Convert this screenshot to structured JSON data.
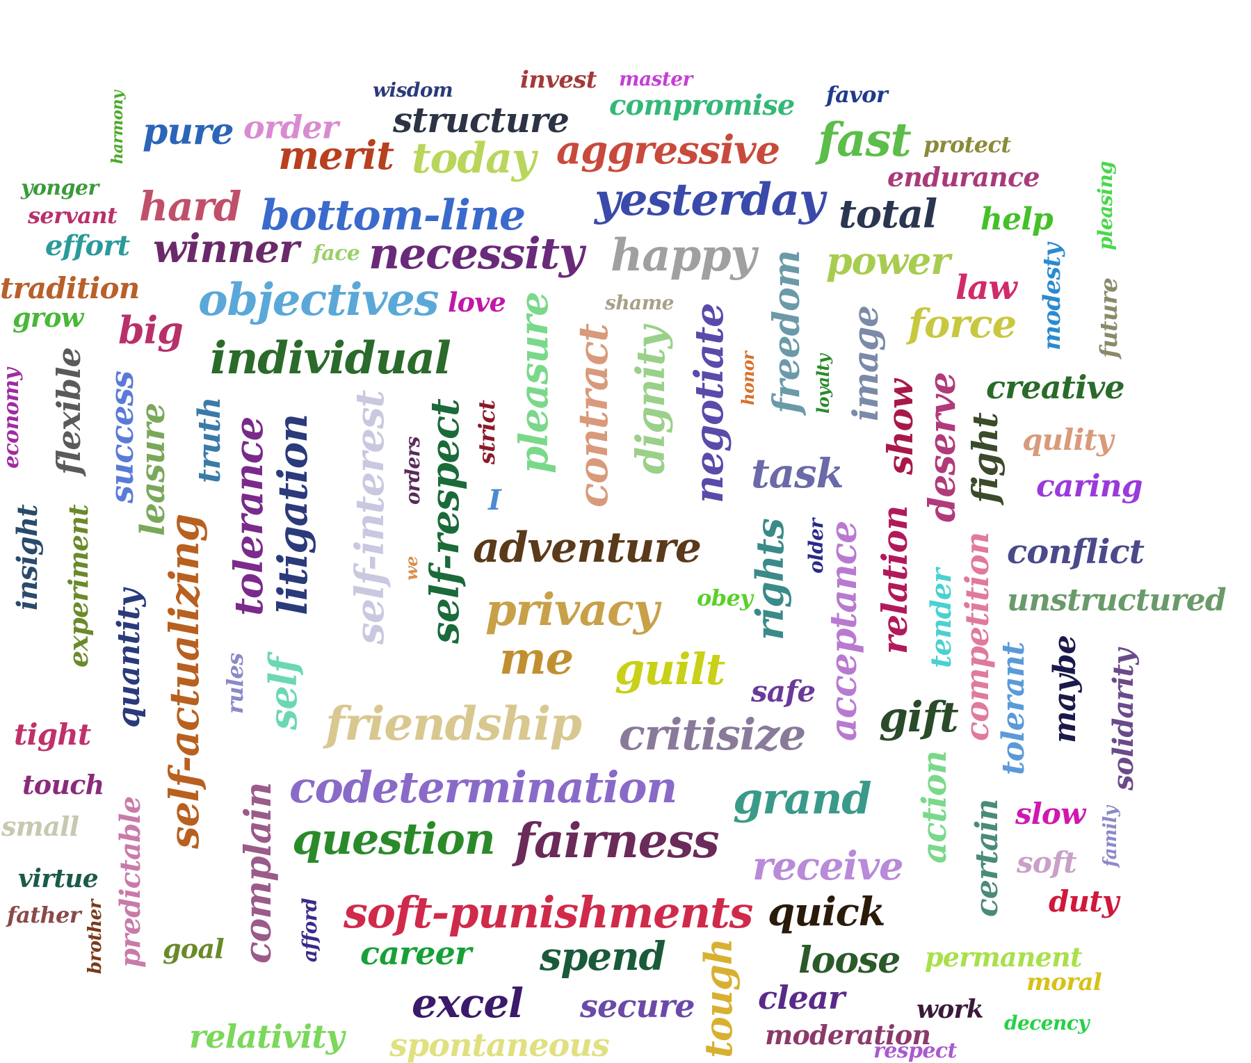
{
  "words": [
    {
      "text": "wisdom",
      "color": "#2b3a7a"
    },
    {
      "text": "invest",
      "color": "#a33a3a"
    },
    {
      "text": "master",
      "color": "#c43fd6"
    },
    {
      "text": "compromise",
      "color": "#34b878"
    },
    {
      "text": "favor",
      "color": "#1f3a8a"
    },
    {
      "text": "harmony",
      "color": "#4caa2a"
    },
    {
      "text": "structure",
      "color": "#2c3344"
    },
    {
      "text": "order",
      "color": "#d98bd0"
    },
    {
      "text": "pure",
      "color": "#2a65b8"
    },
    {
      "text": "merit",
      "color": "#b8401f"
    },
    {
      "text": "today",
      "color": "#b9d65a"
    },
    {
      "text": "aggressive",
      "color": "#c84a3c"
    },
    {
      "text": "fast",
      "color": "#5cbd4a"
    },
    {
      "text": "protect",
      "color": "#8a8a3a"
    },
    {
      "text": "yonger",
      "color": "#3a9a3a"
    },
    {
      "text": "endurance",
      "color": "#a83a7a"
    },
    {
      "text": "servant",
      "color": "#b8306a"
    },
    {
      "text": "hard",
      "color": "#c0506a"
    },
    {
      "text": "bottom-line",
      "color": "#3a6acc"
    },
    {
      "text": "yesterday",
      "color": "#3a4aaa"
    },
    {
      "text": "total",
      "color": "#2a3550"
    },
    {
      "text": "pleasing",
      "color": "#48d848"
    },
    {
      "text": "effort",
      "color": "#2a9a9a"
    },
    {
      "text": "help",
      "color": "#44c028"
    },
    {
      "text": "winner",
      "color": "#6a2a6a"
    },
    {
      "text": "face",
      "color": "#9ad06a"
    },
    {
      "text": "necessity",
      "color": "#6a2a7a"
    },
    {
      "text": "happy",
      "color": "#a0a0a0"
    },
    {
      "text": "power",
      "color": "#a8cc50"
    },
    {
      "text": "modesty",
      "color": "#2a8ad0"
    },
    {
      "text": "tradition",
      "color": "#b8602a"
    },
    {
      "text": "law",
      "color": "#d02a6a"
    },
    {
      "text": "objectives",
      "color": "#5aa8d8"
    },
    {
      "text": "love",
      "color": "#c018a8"
    },
    {
      "text": "shame",
      "color": "#a8a088"
    },
    {
      "text": "future",
      "color": "#8a8a6a"
    },
    {
      "text": "grow",
      "color": "#48b838"
    },
    {
      "text": "big",
      "color": "#b8306a"
    },
    {
      "text": "force",
      "color": "#c8c840"
    },
    {
      "text": "freedom",
      "color": "#6a9aa8"
    },
    {
      "text": "individual",
      "color": "#2a6a2a"
    },
    {
      "text": "pleasure",
      "color": "#7ad88a"
    },
    {
      "text": "contract",
      "color": "#d89a7a"
    },
    {
      "text": "dignity",
      "color": "#9ad08a"
    },
    {
      "text": "negotiate",
      "color": "#5a4aaa"
    },
    {
      "text": "honor",
      "color": "#d8702a"
    },
    {
      "text": "loyalty",
      "color": "#2a8a2a"
    },
    {
      "text": "image",
      "color": "#7a8aa8"
    },
    {
      "text": "creative",
      "color": "#2a6a2a"
    },
    {
      "text": "economy",
      "color": "#a02aa0"
    },
    {
      "text": "flexible",
      "color": "#5a5a5a"
    },
    {
      "text": "success",
      "color": "#5a7ad8"
    },
    {
      "text": "leasure",
      "color": "#7aa85a"
    },
    {
      "text": "truth",
      "color": "#3a7aa8"
    },
    {
      "text": "self-interest",
      "color": "#c8c8e0"
    },
    {
      "text": "orders",
      "color": "#5a2a5a"
    },
    {
      "text": "strict",
      "color": "#8a1a2a"
    },
    {
      "text": "self-respect",
      "color": "#1a6a3a"
    },
    {
      "text": "show",
      "color": "#a8184a"
    },
    {
      "text": "deserve",
      "color": "#b03a7a"
    },
    {
      "text": "fight",
      "color": "#3a4a2a"
    },
    {
      "text": "qulity",
      "color": "#d89a7a"
    },
    {
      "text": "caring",
      "color": "#9a3ad8"
    },
    {
      "text": "task",
      "color": "#6a6aa8"
    },
    {
      "text": "I",
      "color": "#4a8ad0"
    },
    {
      "text": "insight",
      "color": "#2a4a6a"
    },
    {
      "text": "experiment",
      "color": "#6a8a2a"
    },
    {
      "text": "tolerance",
      "color": "#7a2a8a"
    },
    {
      "text": "litigation",
      "color": "#2a3a7a"
    },
    {
      "text": "adventure",
      "color": "#5a3a1a"
    },
    {
      "text": "conflict",
      "color": "#4a4a8a"
    },
    {
      "text": "self-actualizing",
      "color": "#b8601f"
    },
    {
      "text": "quantity",
      "color": "#2a3a7a"
    },
    {
      "text": "we",
      "color": "#d8904a"
    },
    {
      "text": "older",
      "color": "#2a2a8a"
    },
    {
      "text": "rights",
      "color": "#3a8a8a"
    },
    {
      "text": "acceptance",
      "color": "#b87ad0"
    },
    {
      "text": "relation",
      "color": "#b01a5a"
    },
    {
      "text": "tender",
      "color": "#4ad0d0"
    },
    {
      "text": "competition",
      "color": "#e07a9a"
    },
    {
      "text": "unstructured",
      "color": "#6a9a6a"
    },
    {
      "text": "privacy",
      "color": "#c8a048"
    },
    {
      "text": "obey",
      "color": "#5ad02a"
    },
    {
      "text": "tolerant",
      "color": "#5a9ad8"
    },
    {
      "text": "maybe",
      "color": "#1a1a4a"
    },
    {
      "text": "solidarity",
      "color": "#6a4a8a"
    },
    {
      "text": "me",
      "color": "#c09030"
    },
    {
      "text": "guilt",
      "color": "#c8d018"
    },
    {
      "text": "rules",
      "color": "#8a8ac8"
    },
    {
      "text": "self",
      "color": "#6ad8b0"
    },
    {
      "text": "safe",
      "color": "#6a3a9a"
    },
    {
      "text": "tight",
      "color": "#c0306a"
    },
    {
      "text": "friendship",
      "color": "#d8c890"
    },
    {
      "text": "critisize",
      "color": "#8a7a9a"
    },
    {
      "text": "gift",
      "color": "#2a4a2a"
    },
    {
      "text": "touch",
      "color": "#8a2a7a"
    },
    {
      "text": "small",
      "color": "#c8c8b0"
    },
    {
      "text": "codetermination",
      "color": "#8a6ac8"
    },
    {
      "text": "grand",
      "color": "#3a9a8a"
    },
    {
      "text": "action",
      "color": "#7ad88a"
    },
    {
      "text": "slow",
      "color": "#d018b0"
    },
    {
      "text": "family",
      "color": "#8a8ac8"
    },
    {
      "text": "question",
      "color": "#2a8a2a"
    },
    {
      "text": "fairness",
      "color": "#6a2a5a"
    },
    {
      "text": "virtue",
      "color": "#1a5a4a"
    },
    {
      "text": "predictable",
      "color": "#c87aa8"
    },
    {
      "text": "complain",
      "color": "#9a5a8a"
    },
    {
      "text": "receive",
      "color": "#b88ad8"
    },
    {
      "text": "soft",
      "color": "#c8a0c8"
    },
    {
      "text": "certain",
      "color": "#4a8a7a"
    },
    {
      "text": "father",
      "color": "#8a4a4a"
    },
    {
      "text": "brother",
      "color": "#7a3a1a"
    },
    {
      "text": "soft-punishments",
      "color": "#d02a4a"
    },
    {
      "text": "quick",
      "color": "#2a1a0a"
    },
    {
      "text": "duty",
      "color": "#d0183a"
    },
    {
      "text": "goal",
      "color": "#6a8a2a"
    },
    {
      "text": "afford",
      "color": "#3a2a8a"
    },
    {
      "text": "career",
      "color": "#18a038"
    },
    {
      "text": "spend",
      "color": "#1a5a3a"
    },
    {
      "text": "tough",
      "color": "#d8b030"
    },
    {
      "text": "loose",
      "color": "#2a5a2a"
    },
    {
      "text": "permanent",
      "color": "#a8e04a"
    },
    {
      "text": "moral",
      "color": "#d8c018"
    },
    {
      "text": "excel",
      "color": "#3a1a6a"
    },
    {
      "text": "secure",
      "color": "#6a4aa8"
    },
    {
      "text": "clear",
      "color": "#5a2a8a"
    },
    {
      "text": "work",
      "color": "#3a1a3a"
    },
    {
      "text": "decency",
      "color": "#28d048"
    },
    {
      "text": "relativity",
      "color": "#7ad85a"
    },
    {
      "text": "spontaneous",
      "color": "#e0e080"
    },
    {
      "text": "moderation",
      "color": "#8a3a6a"
    },
    {
      "text": "respect",
      "color": "#a85ad0"
    }
  ]
}
